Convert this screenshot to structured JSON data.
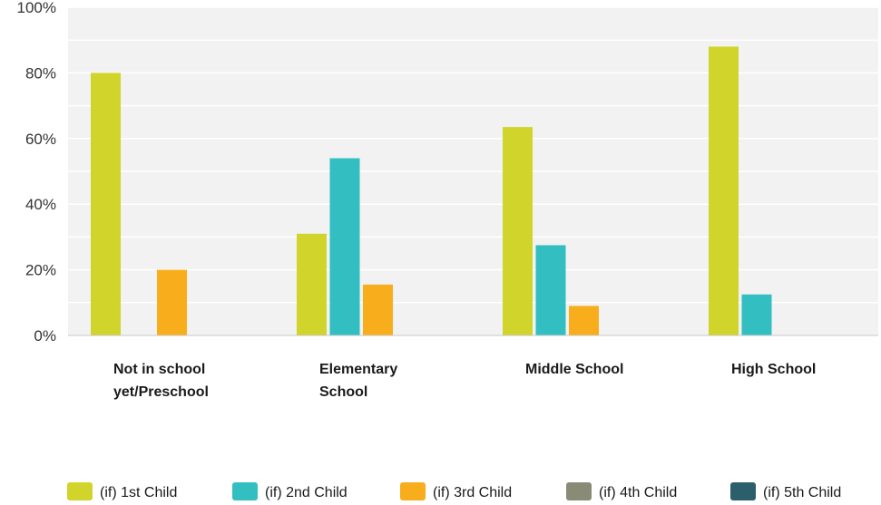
{
  "chart_data": {
    "type": "bar",
    "categories": [
      [
        "Not in school",
        "yet/Preschool"
      ],
      [
        "Elementary",
        "School"
      ],
      [
        "Middle School"
      ],
      [
        "High School"
      ]
    ],
    "series": [
      {
        "name": "(if) 1st Child",
        "color": "#d1d42a",
        "values": [
          80,
          31,
          63.5,
          88
        ]
      },
      {
        "name": "(if) 2nd Child",
        "color": "#33bfc1",
        "values": [
          0,
          54,
          27.5,
          12.5
        ]
      },
      {
        "name": "(if) 3rd Child",
        "color": "#f8ad1d",
        "values": [
          20,
          15.5,
          9,
          0
        ]
      },
      {
        "name": "(if) 4th Child",
        "color": "#8a8b77",
        "values": [
          0,
          0,
          0,
          0
        ]
      },
      {
        "name": "(if) 5th Child",
        "color": "#2d5e6c",
        "values": [
          0,
          0,
          0,
          0
        ]
      }
    ],
    "yticks": [
      "0%",
      "20%",
      "40%",
      "60%",
      "80%",
      "100%"
    ],
    "ylim": [
      0,
      100
    ],
    "grid": true,
    "legend": "bottom"
  }
}
